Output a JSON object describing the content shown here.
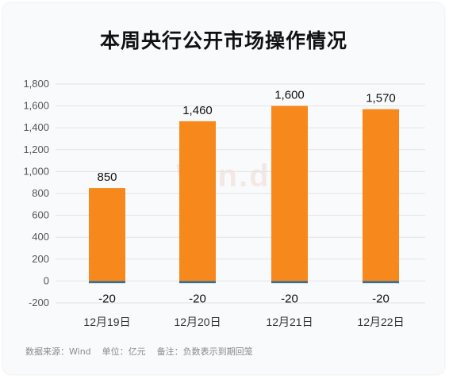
{
  "title": "本周央行公开市场操作情况",
  "watermark": "Win.d",
  "footer": {
    "source": "数据来源：Wind",
    "unit": "单位：亿元",
    "note": "备注：负数表示到期回笼"
  },
  "colors": {
    "injection": "#f7891c",
    "maturity": "#3a6e8c",
    "grid": "#e3e3e3"
  },
  "chart_data": {
    "type": "bar",
    "title": "本周央行公开市场操作情况",
    "categories": [
      "12月19日",
      "12月20日",
      "12月21日",
      "12月22日"
    ],
    "series": [
      {
        "values": [
          850,
          1460,
          1600,
          1570
        ]
      },
      {
        "values": [
          -20,
          -20,
          -20,
          -20
        ]
      }
    ],
    "value_labels_top": [
      "850",
      "1,460",
      "1,600",
      "1,570"
    ],
    "value_labels_bottom": [
      "-20",
      "-20",
      "-20",
      "-20"
    ],
    "yticks": [
      "-200",
      "0",
      "200",
      "400",
      "600",
      "800",
      "1,000",
      "1,200",
      "1,400",
      "1,600",
      "1,800"
    ],
    "ytick_values": [
      -200,
      0,
      200,
      400,
      600,
      800,
      1000,
      1200,
      1400,
      1600,
      1800
    ],
    "ylim": [
      -200,
      1800
    ],
    "grid": true,
    "legend": "none"
  }
}
